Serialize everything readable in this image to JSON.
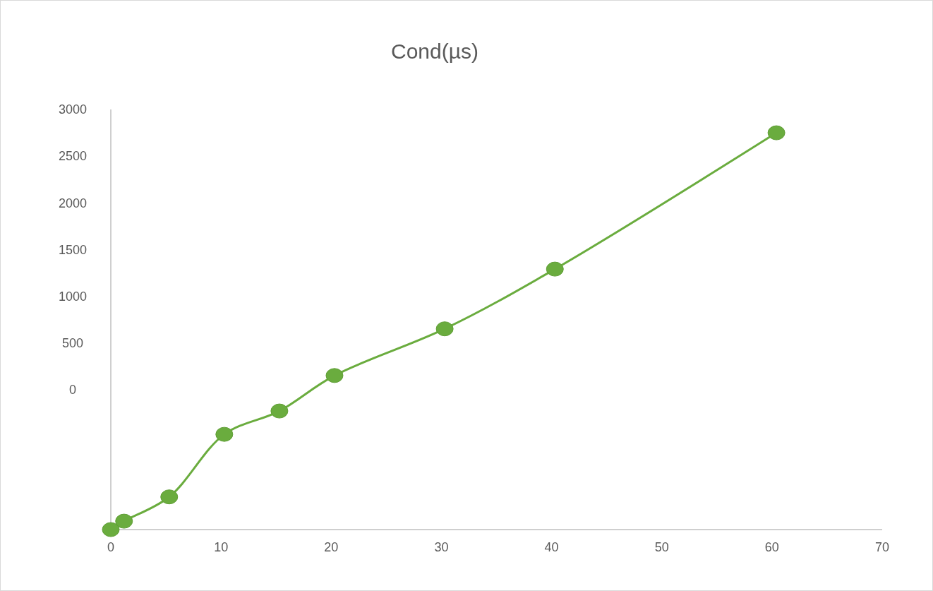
{
  "chart_data": {
    "type": "line",
    "title": "Cond(µs)",
    "x": [
      0,
      1.2,
      5.3,
      10.3,
      15.3,
      20.3,
      30.3,
      40.3,
      60.4
    ],
    "series": [
      {
        "color": "#6aac3e",
        "values": [
          -1500,
          -1410,
          -1150,
          -480,
          -230,
          150,
          650,
          1290,
          2750
        ]
      }
    ],
    "xlim": [
      0,
      70
    ],
    "xticks": [
      0,
      10,
      20,
      30,
      40,
      50,
      60,
      70
    ],
    "ylim": [
      -1500,
      3000
    ],
    "yticks": [
      0,
      500,
      1000,
      1500,
      2000,
      2500,
      3000
    ],
    "marker": "circle",
    "line_style": "solid",
    "grid": false
  }
}
